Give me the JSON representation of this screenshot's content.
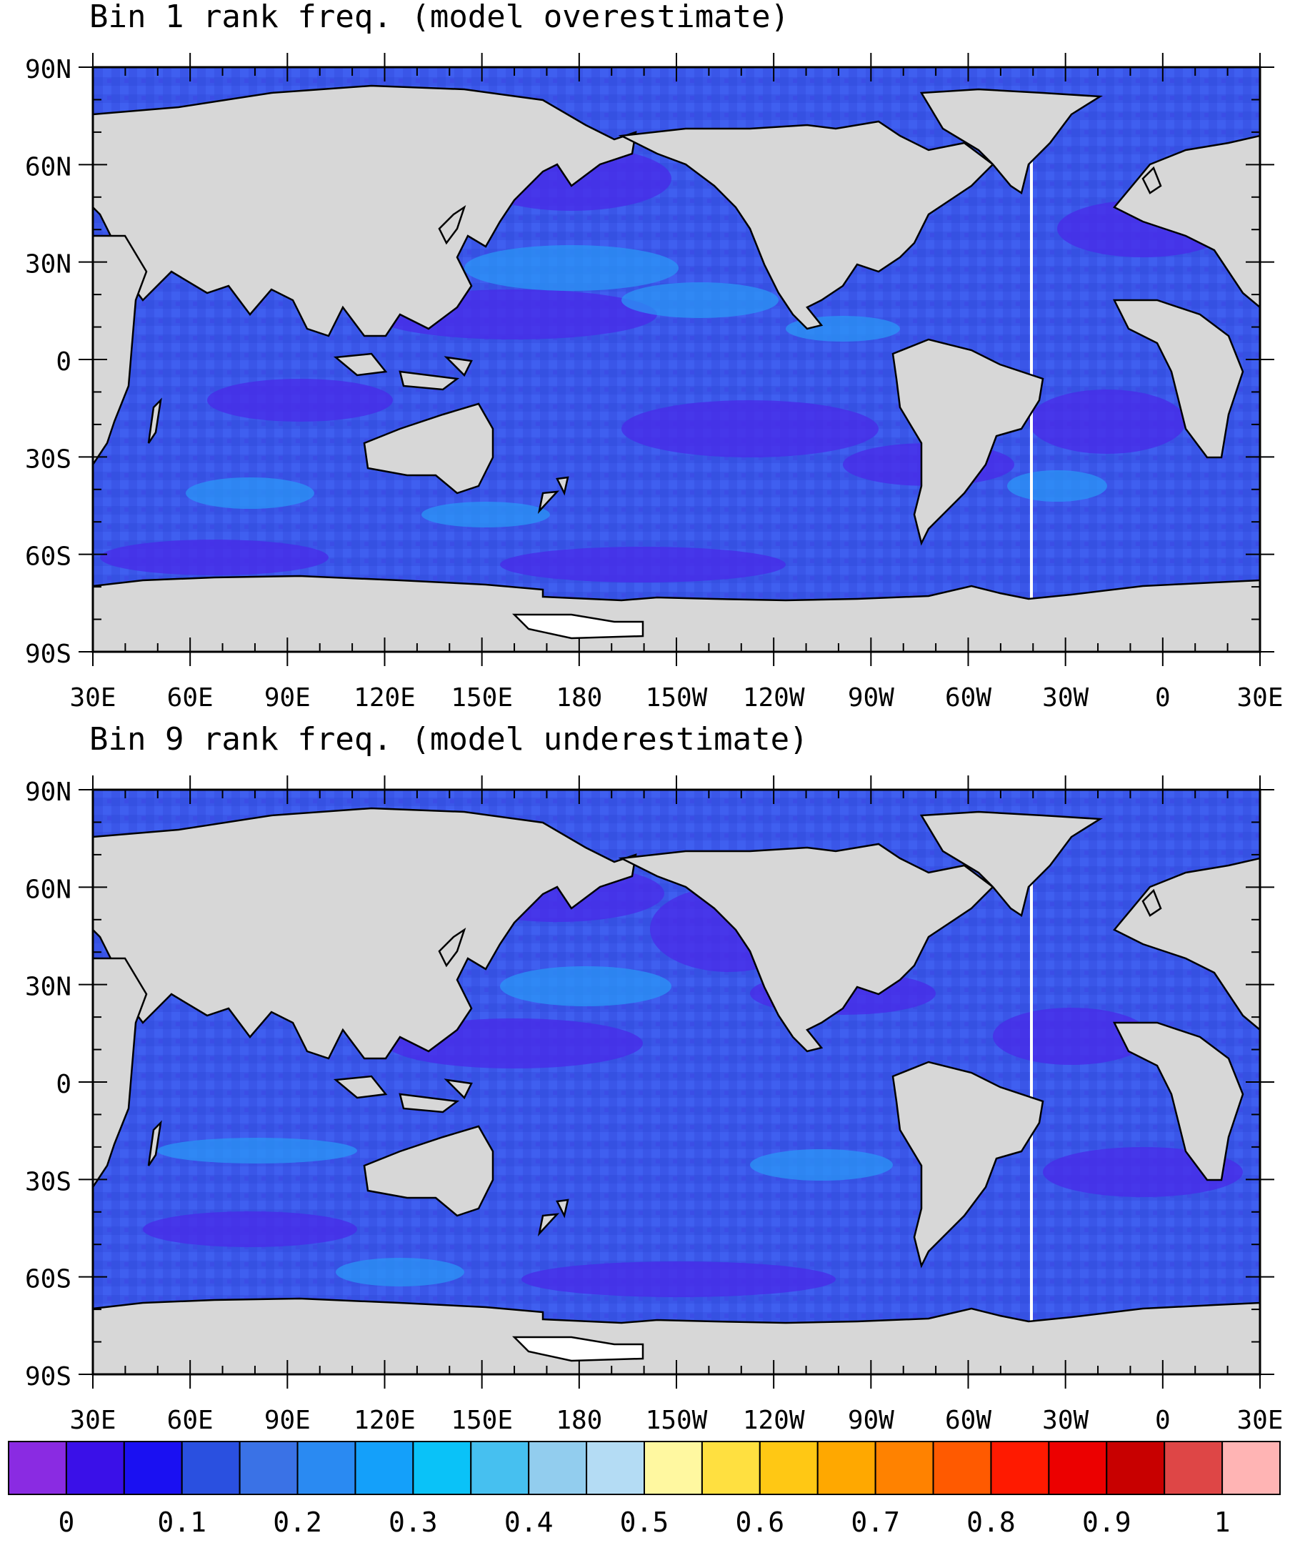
{
  "panels": [
    {
      "title": "Bin 1 rank freq. (model overestimate)",
      "lat_ticks": [
        "90N",
        "60N",
        "30N",
        "0",
        "30S",
        "60S",
        "90S"
      ],
      "lon_ticks": [
        "30E",
        "60E",
        "90E",
        "120E",
        "150E",
        "180",
        "150W",
        "120W",
        "90W",
        "60W",
        "30W",
        "0",
        "30E"
      ]
    },
    {
      "title": "Bin 9 rank freq. (model underestimate)",
      "lat_ticks": [
        "90N",
        "60N",
        "30N",
        "0",
        "30S",
        "60S",
        "90S"
      ],
      "lon_ticks": [
        "30E",
        "60E",
        "90E",
        "120E",
        "150E",
        "180",
        "150W",
        "120W",
        "90W",
        "60W",
        "30W",
        "0",
        "30E"
      ]
    }
  ],
  "colorbar": {
    "labels": [
      "0",
      "0.1",
      "0.2",
      "0.3",
      "0.4",
      "0.5",
      "0.6",
      "0.7",
      "0.8",
      "0.9",
      "1"
    ],
    "colors": [
      "#8a2be2",
      "#3a10e8",
      "#1a10f2",
      "#2a50e0",
      "#3a72e6",
      "#2a8af2",
      "#14a0fa",
      "#0ac2f8",
      "#46c0f0",
      "#92cdee",
      "#b4dcf4",
      "#fff8a0",
      "#ffe040",
      "#ffc814",
      "#ffa800",
      "#ff8200",
      "#ff5a00",
      "#ff1a00",
      "#ec0000",
      "#c80000",
      "#de4646",
      "#ffb4b4"
    ]
  },
  "colors": {
    "land": "#d7d7d7",
    "ocean_base": "#3a56e8",
    "coast": "#000000"
  }
}
